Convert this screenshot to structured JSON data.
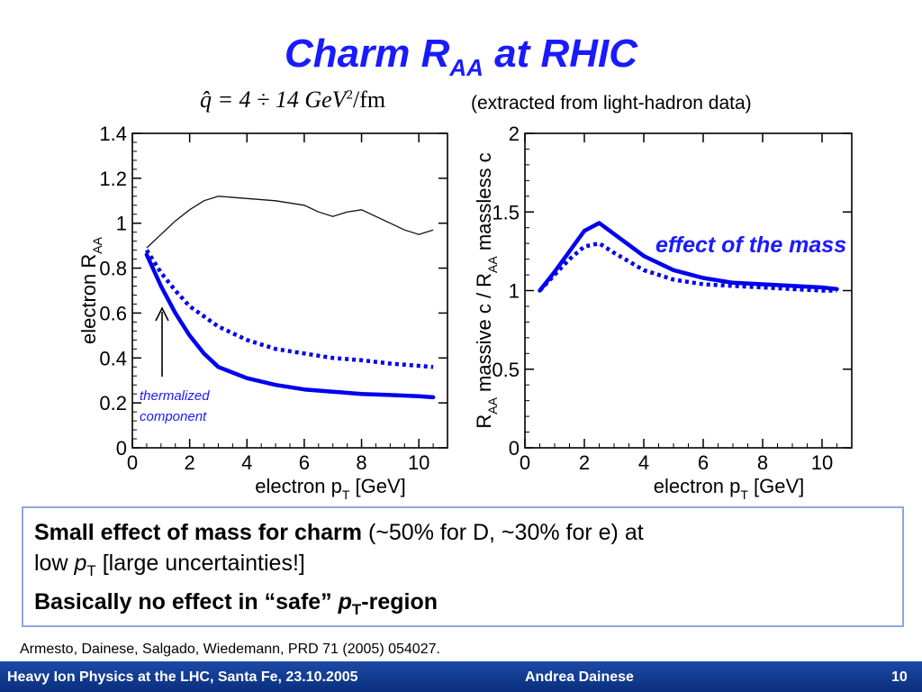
{
  "title": {
    "main": "Charm R",
    "sub": "AA",
    "tail": " at RHIC"
  },
  "formula": {
    "lhs": "q̂ = 4 ÷ 14 GeV",
    "exp": "2",
    "unit": "/fm"
  },
  "extracted_note": "(extracted from light-hadron data)",
  "annotations": {
    "mass": "effect of the mass",
    "thermal_line1": "thermalized",
    "thermal_line2": "component"
  },
  "summary": {
    "l1_bold": "Small effect of mass for charm",
    "l1_rest": " (~50% for D, ~30% for e) at",
    "l2_a": "low ",
    "l2_p": "p",
    "l2_sub": "T",
    "l2_rest": " [large uncertainties!]",
    "l3_a": "Basically no effect in “safe” ",
    "l3_p": "p",
    "l3_sub": "T",
    "l3_rest": "-region"
  },
  "reference": "Armesto, Dainese, Salgado, Wiedemann, PRD 71 (2005) 054027.",
  "footer": {
    "left": "Heavy Ion Physics at the LHC, Santa Fe, 23.10.2005",
    "center": "Andrea Dainese",
    "page": "10"
  },
  "colors": {
    "accent": "#1a1aff",
    "curve": "#0000ee",
    "footer": "#0a2f7c"
  },
  "chart_data": [
    {
      "type": "line",
      "xlabel": "electron p",
      "xlabel_sub": "T",
      "xlabel_unit": " [GeV]",
      "ylabel": "electron R",
      "ylabel_sub": "AA",
      "xlim": [
        0,
        11
      ],
      "ylim": [
        0,
        1.4
      ],
      "xticks": [
        "0",
        "2",
        "4",
        "6",
        "8",
        "10"
      ],
      "yticks": [
        "0",
        "0.2",
        "0.4",
        "0.6",
        "0.8",
        "1",
        "1.2",
        "1.4"
      ],
      "series": [
        {
          "style": "thin-black",
          "x": [
            0.5,
            1,
            1.5,
            2,
            2.5,
            3,
            4,
            5,
            6,
            6.5,
            7,
            7.5,
            8,
            9,
            9.5,
            10,
            10.5
          ],
          "y": [
            0.89,
            0.95,
            1.01,
            1.06,
            1.1,
            1.12,
            1.11,
            1.1,
            1.08,
            1.05,
            1.03,
            1.05,
            1.06,
            1.0,
            0.97,
            0.95,
            0.97
          ]
        },
        {
          "style": "solid-blue",
          "x": [
            0.5,
            1,
            1.5,
            2,
            2.5,
            3,
            4,
            5,
            6,
            7,
            8,
            9,
            10,
            10.5
          ],
          "y": [
            0.86,
            0.72,
            0.6,
            0.5,
            0.42,
            0.36,
            0.31,
            0.28,
            0.26,
            0.25,
            0.24,
            0.235,
            0.23,
            0.225
          ]
        },
        {
          "style": "dotted-blue",
          "x": [
            0.5,
            1,
            1.5,
            2,
            3,
            4,
            5,
            6,
            7,
            8,
            9,
            10,
            10.5
          ],
          "y": [
            0.88,
            0.78,
            0.7,
            0.63,
            0.54,
            0.48,
            0.44,
            0.42,
            0.4,
            0.39,
            0.375,
            0.365,
            0.36
          ]
        }
      ]
    },
    {
      "type": "line",
      "xlabel": "electron p",
      "xlabel_sub": "T",
      "xlabel_unit": " [GeV]",
      "ylabel": "R",
      "ylabel_sub": "AA",
      "ylabel_rest": " massive c / R",
      "ylabel_sub2": "AA",
      "ylabel_tail": " massless c",
      "xlim": [
        0,
        11
      ],
      "ylim": [
        0,
        2
      ],
      "xticks": [
        "0",
        "2",
        "4",
        "6",
        "8",
        "10"
      ],
      "yticks": [
        "0",
        "0.5",
        "1",
        "1.5",
        "2"
      ],
      "series": [
        {
          "style": "solid-blue",
          "x": [
            0.5,
            1,
            1.5,
            2,
            2.5,
            3,
            4,
            5,
            6,
            7,
            8,
            9,
            10,
            10.5
          ],
          "y": [
            1.0,
            1.12,
            1.25,
            1.38,
            1.43,
            1.36,
            1.22,
            1.13,
            1.08,
            1.05,
            1.04,
            1.03,
            1.02,
            1.01
          ]
        },
        {
          "style": "dotted-blue",
          "x": [
            0.5,
            1,
            1.5,
            2,
            2.5,
            3,
            4,
            5,
            6,
            7,
            8,
            9,
            10,
            10.5
          ],
          "y": [
            1.0,
            1.1,
            1.2,
            1.28,
            1.3,
            1.24,
            1.13,
            1.07,
            1.04,
            1.03,
            1.02,
            1.01,
            1.0,
            1.0
          ]
        }
      ]
    }
  ]
}
